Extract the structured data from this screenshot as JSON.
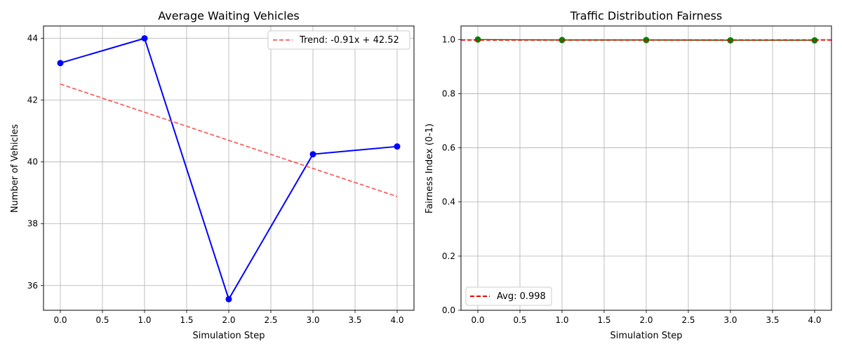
{
  "chart_data": [
    {
      "type": "line",
      "title": "Average Waiting Vehicles",
      "xlabel": "Simulation Step",
      "ylabel": "Number of Vehicles",
      "xlim": [
        -0.2,
        4.2
      ],
      "ylim": [
        35.2,
        44.4
      ],
      "xticks": [
        "0.0",
        "0.5",
        "1.0",
        "1.5",
        "2.0",
        "2.5",
        "3.0",
        "3.5",
        "4.0"
      ],
      "yticks": [
        "36",
        "38",
        "40",
        "42",
        "44"
      ],
      "grid": true,
      "legend_position": "top-right",
      "series": [
        {
          "x": [
            0,
            1,
            2,
            3,
            4
          ],
          "values": [
            43.2,
            44.0,
            35.56,
            40.25,
            40.5
          ],
          "color": "#0000ff",
          "style": "solid",
          "marker": "circle"
        },
        {
          "name": "Trend: -0.91x + 42.52",
          "x": [
            0,
            4
          ],
          "values": [
            42.52,
            38.88
          ],
          "color": "#ef4444",
          "style": "dashed"
        }
      ]
    },
    {
      "type": "line",
      "title": "Traffic Distribution Fairness",
      "xlabel": "Simulation Step",
      "ylabel": "Fairness Index (0-1)",
      "xlim": [
        -0.2,
        4.2
      ],
      "ylim": [
        0,
        1.05
      ],
      "xticks": [
        "0.0",
        "0.5",
        "1.0",
        "1.5",
        "2.0",
        "2.5",
        "3.0",
        "3.5",
        "4.0"
      ],
      "yticks": [
        "0.0",
        "0.2",
        "0.4",
        "0.6",
        "0.8",
        "1.0"
      ],
      "grid": true,
      "legend_position": "bottom-left",
      "series": [
        {
          "x": [
            0,
            1,
            2,
            3,
            4
          ],
          "values": [
            1.0,
            0.998,
            0.998,
            0.997,
            0.997
          ],
          "color": "#008000",
          "style": "solid",
          "marker": "circle"
        },
        {
          "name": "Avg: 0.998",
          "y": 0.998,
          "color": "#ee0000",
          "style": "dashed",
          "type": "hline"
        }
      ]
    }
  ]
}
